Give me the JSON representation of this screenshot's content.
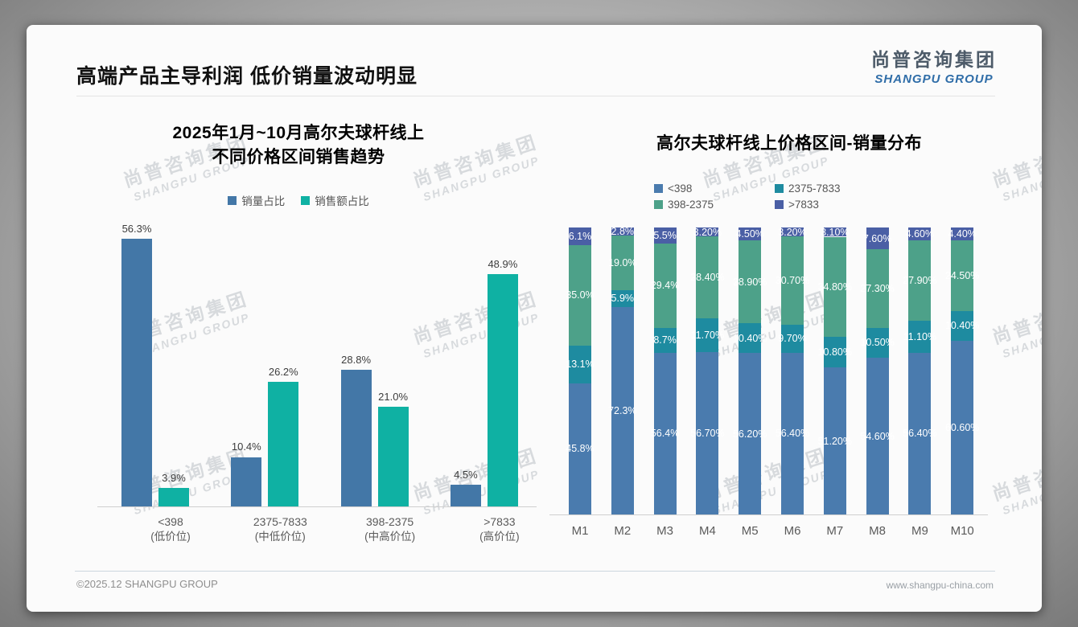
{
  "page": {
    "title": "高端产品主导利润 低价销量波动明显",
    "logo": {
      "cn": "尚普咨询集团",
      "en": "SHANGPU GROUP"
    },
    "watermark": {
      "cn": "尚普咨询集团",
      "en": "SHANGPU GROUP"
    },
    "footer": {
      "left": "©2025.12 SHANGPU GROUP",
      "right": "www.shangpu-china.com"
    }
  },
  "chart_data": [
    {
      "type": "bar",
      "stacked": false,
      "title_lines": [
        "2025年1月~10月高尔夫球杆线上",
        "不同价格区间销售趋势"
      ],
      "categories": [
        {
          "range": "<398",
          "tier": "(低价位)"
        },
        {
          "range": "2375-7833",
          "tier": "(中低价位)"
        },
        {
          "range": "398-2375",
          "tier": "(中高价位)"
        },
        {
          "range": ">7833",
          "tier": "(高价位)"
        }
      ],
      "series": [
        {
          "name": "销量占比",
          "color": "#4377a7",
          "values": [
            56.3,
            10.4,
            28.8,
            4.5
          ],
          "labels": [
            "56.3%",
            "10.4%",
            "28.8%",
            "4.5%"
          ]
        },
        {
          "name": "销售额占比",
          "color": "#0fb1a3",
          "values": [
            3.9,
            26.2,
            21.0,
            48.9
          ],
          "labels": [
            "3.9%",
            "26.2%",
            "21.0%",
            "48.9%"
          ]
        }
      ],
      "ylim": [
        0,
        60
      ],
      "grid": false,
      "legend_position": "top"
    },
    {
      "type": "bar",
      "stacked": true,
      "title": "高尔夫球杆线上价格区间-销量分布",
      "categories": [
        "M1",
        "M2",
        "M3",
        "M4",
        "M5",
        "M6",
        "M7",
        "M8",
        "M9",
        "M10"
      ],
      "series": [
        {
          "name": "<398",
          "color": "#4a7bae",
          "values": [
            45.8,
            72.3,
            56.4,
            56.7,
            56.2,
            56.4,
            51.2,
            54.6,
            56.4,
            60.6
          ],
          "labels": [
            "45.8%",
            "72.3%",
            "56.4%",
            "56.70%",
            "56.20%",
            "56.40%",
            "51.20%",
            "54.60%",
            "56.40%",
            "60.60%"
          ]
        },
        {
          "name": "2375-7833",
          "color": "#1e8ba0",
          "values": [
            13.1,
            5.9,
            8.7,
            11.7,
            10.4,
            9.7,
            10.8,
            10.5,
            11.1,
            10.4
          ],
          "labels": [
            "13.1%",
            "5.9%",
            "8.7%",
            "11.70%",
            "10.40%",
            "9.70%",
            "10.80%",
            "10.50%",
            "11.10%",
            "10.40%"
          ]
        },
        {
          "name": "398-2375",
          "color": "#4da189",
          "values": [
            35.0,
            19.0,
            29.4,
            28.4,
            28.9,
            30.7,
            34.8,
            27.3,
            27.9,
            24.5
          ],
          "labels": [
            "35.0%",
            "19.0%",
            "29.4%",
            "28.40%",
            "28.90%",
            "30.70%",
            "34.80%",
            "27.30%",
            "27.90%",
            "24.50%"
          ]
        },
        {
          "name": ">7833",
          "color": "#4a5fa5",
          "values": [
            6.1,
            2.8,
            5.5,
            3.2,
            4.5,
            3.2,
            3.1,
            7.6,
            4.6,
            4.4
          ],
          "labels": [
            "6.1%",
            "2.8%",
            "5.5%",
            "3.20%",
            "4.50%",
            "3.20%",
            "3.10%",
            "7.60%",
            "4.60%",
            "4.40%"
          ]
        }
      ],
      "ylim": [
        0,
        100
      ],
      "grid": false,
      "legend_position": "top"
    }
  ]
}
